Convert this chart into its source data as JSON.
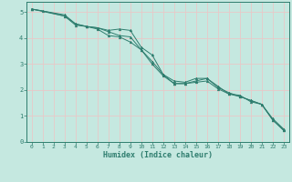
{
  "xlabel": "Humidex (Indice chaleur)",
  "background_color": "#c5e8e0",
  "grid_color": "#e8c8c8",
  "line_color": "#2e7d6e",
  "xlim": [
    -0.5,
    23.5
  ],
  "ylim": [
    0,
    5.4
  ],
  "xticks": [
    0,
    1,
    2,
    3,
    4,
    5,
    6,
    7,
    8,
    9,
    10,
    11,
    12,
    13,
    14,
    15,
    16,
    17,
    18,
    19,
    20,
    21,
    22,
    23
  ],
  "yticks": [
    0,
    1,
    2,
    3,
    4,
    5
  ],
  "line1_x": [
    0,
    1,
    3,
    4,
    5,
    6,
    7,
    8,
    9,
    10,
    11,
    12,
    13,
    14,
    15,
    16,
    17,
    18,
    19,
    20,
    21,
    22,
    23
  ],
  "line1_y": [
    5.12,
    5.05,
    4.85,
    4.55,
    4.45,
    4.35,
    4.1,
    4.05,
    3.85,
    3.55,
    3.1,
    2.6,
    2.35,
    2.3,
    2.45,
    2.45,
    2.15,
    1.85,
    1.8,
    1.55,
    1.45,
    0.9,
    0.5
  ],
  "line2_x": [
    0,
    3,
    4,
    5,
    6,
    7,
    8,
    9,
    10,
    11,
    12,
    13,
    14,
    15,
    16,
    17,
    18,
    19,
    20,
    21,
    22,
    23
  ],
  "line2_y": [
    5.12,
    4.9,
    4.55,
    4.45,
    4.4,
    4.3,
    4.35,
    4.3,
    3.65,
    3.35,
    2.6,
    2.25,
    2.25,
    2.35,
    2.45,
    2.1,
    1.9,
    1.75,
    1.6,
    1.45,
    0.85,
    0.45
  ],
  "line3_x": [
    0,
    3,
    4,
    5,
    6,
    7,
    8,
    9,
    10,
    11,
    12,
    13,
    14,
    15,
    16,
    17,
    18,
    19,
    20,
    21,
    22,
    23
  ],
  "line3_y": [
    5.12,
    4.85,
    4.5,
    4.45,
    4.4,
    4.25,
    4.1,
    4.05,
    3.55,
    3.0,
    2.55,
    2.25,
    2.25,
    2.3,
    2.35,
    2.05,
    1.85,
    1.75,
    1.6,
    1.45,
    0.85,
    0.45
  ]
}
